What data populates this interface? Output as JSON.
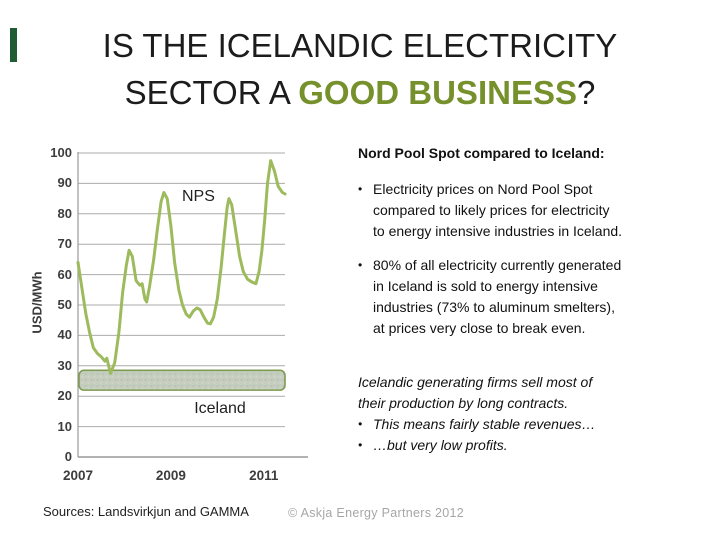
{
  "slide": {
    "title_line1": "IS THE ICELANDIC ELECTRICITY",
    "title_line2_prefix": "SECTOR A ",
    "title_line2_highlight": "GOOD BUSINESS",
    "title_line2_suffix": "?",
    "accent_green": "#76912c",
    "footer_left": "Sources: Landsvirkjun and GAMMA",
    "footer_right": "© Askja Energy Partners 2012"
  },
  "right_panel": {
    "bullet_char": "•",
    "heading": "Nord Pool Spot compared to Iceland:",
    "bullets": [
      {
        "lines": [
          "Electricity prices on Nord Pool Spot",
          "compared to likely prices for electricity",
          "to energy intensive industries in Iceland."
        ]
      },
      {
        "lines": [
          "80% of all electricity currently generated",
          "in Iceland is sold to energy intensive",
          "industries (73% to aluminum smelters),",
          "at prices very close to break even."
        ]
      }
    ],
    "italic_lines": [
      "Icelandic generating firms sell most of",
      "their production by long contracts."
    ],
    "italic_bullets": [
      "This means fairly stable revenues…",
      "…but very low profits."
    ]
  },
  "chart_data": {
    "type": "line",
    "title": "",
    "xlabel": "",
    "ylabel": "USD/MWh",
    "ylim": [
      0,
      100
    ],
    "xlim": [
      2007,
      2011.5
    ],
    "yticks": [
      0,
      10,
      20,
      30,
      40,
      50,
      60,
      70,
      80,
      90,
      100
    ],
    "xticks": [
      2007,
      2009,
      2011
    ],
    "grid": "horizontal",
    "gridline_color": "#ababab",
    "axis_color": "#999999",
    "legend_position": "inline-annotations",
    "series": [
      {
        "name": "NPS",
        "color": "#9dbb5d",
        "x": [
          2007.0,
          2007.08,
          2007.17,
          2007.25,
          2007.33,
          2007.42,
          2007.5,
          2007.58,
          2007.62,
          2007.7,
          2007.79,
          2007.88,
          2007.96,
          2008.04,
          2008.1,
          2008.17,
          2008.25,
          2008.33,
          2008.38,
          2008.44,
          2008.48,
          2008.54,
          2008.63,
          2008.71,
          2008.79,
          2008.85,
          2008.92,
          2009.0,
          2009.08,
          2009.17,
          2009.25,
          2009.33,
          2009.4,
          2009.48,
          2009.56,
          2009.63,
          2009.71,
          2009.79,
          2009.85,
          2009.92,
          2010.0,
          2010.08,
          2010.15,
          2010.21,
          2010.25,
          2010.31,
          2010.4,
          2010.48,
          2010.56,
          2010.65,
          2010.75,
          2010.83,
          2010.9,
          2010.96,
          2011.02,
          2011.08,
          2011.15,
          2011.23,
          2011.31,
          2011.4,
          2011.46
        ],
        "y": [
          64,
          56,
          47,
          41,
          36,
          34,
          33,
          31.5,
          32.5,
          27.5,
          31,
          41,
          54,
          63,
          68,
          66,
          58,
          56.5,
          57,
          52,
          51,
          56,
          65,
          75,
          84,
          87,
          85,
          76,
          64,
          55,
          50,
          47,
          46,
          48,
          49,
          48.5,
          46,
          44,
          43.8,
          46,
          52,
          62,
          73,
          82,
          85,
          83,
          74,
          66,
          61,
          58.5,
          57.5,
          57,
          61,
          68,
          78,
          90,
          97.5,
          94,
          89,
          87,
          86.5
        ]
      }
    ],
    "band": {
      "label": "Iceland",
      "from": 22,
      "to": 28.5,
      "fill": "#c6cec0",
      "border": "#7f9b51"
    }
  }
}
